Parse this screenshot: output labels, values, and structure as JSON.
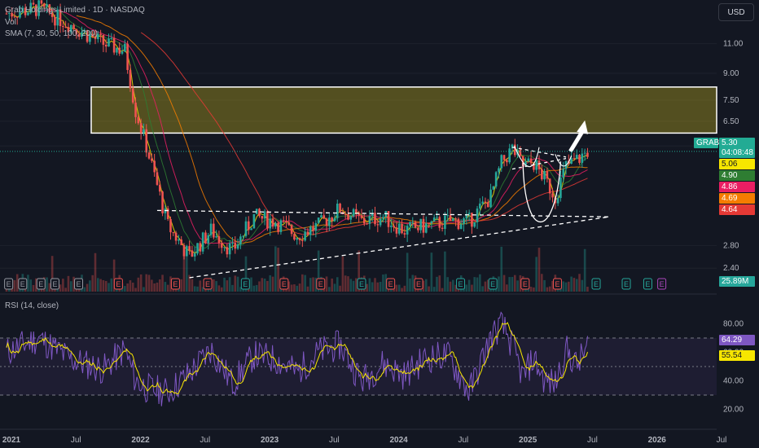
{
  "header": {
    "symbol_title": "Grab Holdings Limited · 1D · NASDAQ",
    "volume_label": "Vol",
    "sma_label": "SMA (7, 30, 50, 100, 200)",
    "currency_button": "USD"
  },
  "rsi": {
    "label": "RSI (14, close)",
    "value": "64.29",
    "ma_value": "55.54",
    "upper_band": 70,
    "lower_band": 30,
    "ticks": [
      "80.00",
      "60.00",
      "40.00",
      "20.00"
    ]
  },
  "price_scale": {
    "ticks": [
      "11.00",
      "9.00",
      "7.50",
      "6.50",
      "5.50",
      "2.80",
      "2.40"
    ],
    "last_price": "5.30",
    "countdown": "04:08:48",
    "symbol_tag": "GRAB",
    "sma_values": [
      {
        "value": "5.06",
        "color": "#f7e600"
      },
      {
        "value": "4.90",
        "color": "#2e7d32"
      },
      {
        "value": "4.86",
        "color": "#e91e63"
      },
      {
        "value": "4.69",
        "color": "#f57c00"
      },
      {
        "value": "4.64",
        "color": "#e53935"
      }
    ],
    "volume_tag": "25.89M"
  },
  "time_axis": {
    "labels": [
      "2021",
      "Jul",
      "2022",
      "Jul",
      "2023",
      "Jul",
      "2024",
      "Jul",
      "2025",
      "Jul",
      "2026",
      "Jul"
    ]
  },
  "events": [
    "E",
    "E",
    "E",
    "E",
    "E",
    "E",
    "E",
    "E",
    "E",
    "E",
    "E",
    "E",
    "E",
    "E",
    "E",
    "E",
    "E",
    "E",
    "E",
    "E",
    "E",
    "E"
  ],
  "chart_data": {
    "type": "line",
    "title": "Grab Holdings Limited · 1D · NASDAQ",
    "scale": "log",
    "ylim": [
      2.2,
      14
    ],
    "x": [
      "2021-01",
      "2021-04",
      "2021-07",
      "2021-10",
      "2021-12",
      "2022-01",
      "2022-02",
      "2022-04",
      "2022-06",
      "2022-08",
      "2022-10",
      "2022-12",
      "2023-02",
      "2023-04",
      "2023-06",
      "2023-08",
      "2023-10",
      "2023-12",
      "2024-02",
      "2024-04",
      "2024-06",
      "2024-08",
      "2024-10",
      "2024-11",
      "2024-12",
      "2025-01",
      "2025-02",
      "2025-03",
      "2025-04",
      "2025-05",
      "2025-06",
      "2025-07"
    ],
    "series": [
      {
        "name": "GRAB",
        "values": [
          13.5,
          14.0,
          12.5,
          11.0,
          10.5,
          7.0,
          5.5,
          3.2,
          2.6,
          3.1,
          2.7,
          3.4,
          3.3,
          3.0,
          3.2,
          3.6,
          3.3,
          3.4,
          3.1,
          3.2,
          3.3,
          3.3,
          3.9,
          4.9,
          5.4,
          4.8,
          4.9,
          4.4,
          3.9,
          4.8,
          5.0,
          5.3
        ]
      }
    ],
    "zones": [
      {
        "low": 6.0,
        "high": 8.2,
        "label": ""
      }
    ],
    "rsi_values": [
      60,
      70,
      55,
      48,
      62,
      40,
      35,
      32,
      45,
      62,
      38,
      58,
      55,
      46,
      60,
      65,
      40,
      52,
      44,
      56,
      58,
      32,
      70,
      80,
      65,
      42,
      56,
      40,
      38,
      62,
      50,
      64.29
    ]
  }
}
